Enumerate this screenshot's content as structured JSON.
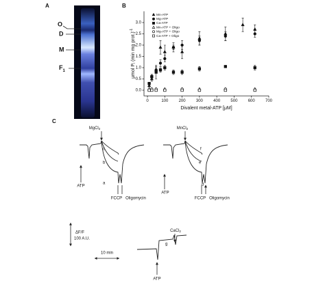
{
  "panel_a": {
    "label": "A",
    "bands": [
      "O",
      "D",
      "M",
      "F",
      "1"
    ]
  },
  "chart_data": {
    "type": "scatter",
    "label": "B",
    "x_label": "Divalent metal-ATP [μM]",
    "y_label": [
      "μmol P",
      "i",
      " (min mg prot.)",
      "-1"
    ],
    "xlim": [
      -20,
      700
    ],
    "xticks": [
      0,
      100,
      200,
      300,
      400,
      500,
      600,
      700
    ],
    "ylim": [
      -0.25,
      3.5
    ],
    "yticks": [
      {
        "value": 0,
        "label": "0.0"
      },
      0.5,
      {
        "value": 1,
        "label": "1.0"
      },
      1.5,
      {
        "value": 2,
        "label": "2.0"
      },
      2.5,
      {
        "value": 3,
        "label": "3.0"
      }
    ],
    "legend": "top-left",
    "series": [
      {
        "name": "Mn-ATP",
        "marker": "triangle",
        "filled": true,
        "color": "#111",
        "x": [
          10,
          25,
          50,
          75,
          100,
          150,
          200,
          300,
          450,
          550,
          620
        ],
        "values": [
          0.2,
          0.5,
          0.9,
          1.9,
          1.7,
          1.9,
          1.7,
          2.3,
          2.5,
          2.9,
          2.7
        ],
        "errors": [
          0.05,
          0.1,
          0.15,
          0.3,
          0.3,
          0.2,
          0.3,
          0.3,
          0.3,
          0.3,
          0.2
        ]
      },
      {
        "name": "Mg-ATP",
        "marker": "circle",
        "filled": true,
        "color": "#111",
        "x": [
          10,
          25,
          50,
          75,
          100,
          150,
          200,
          300,
          450,
          620
        ],
        "values": [
          0.3,
          0.6,
          0.9,
          1.2,
          1.4,
          1.9,
          2.0,
          2.2,
          2.4,
          2.5
        ],
        "errors": [
          0.05,
          0.1,
          0.1,
          0.15,
          0.15,
          0.1,
          0.2,
          0.2,
          0.2,
          0.15
        ]
      },
      {
        "name": "Ca-ATP",
        "marker": "square",
        "filled": true,
        "color": "#111",
        "x": [
          10,
          25,
          50,
          75,
          100,
          150,
          200,
          300,
          450,
          620
        ],
        "values": [
          0.3,
          0.6,
          0.8,
          0.9,
          1.0,
          0.8,
          0.8,
          0.95,
          1.05,
          1.0
        ],
        "errors": [
          0.05,
          0.1,
          0.3,
          0.1,
          0.1,
          0.1,
          0.1,
          0.1,
          0.05,
          0.1
        ]
      },
      {
        "name": "Mn-ATP + Oligo",
        "marker": "triangle",
        "filled": false,
        "color": "#111",
        "x": [
          10,
          25,
          50,
          100,
          200,
          300,
          450,
          620
        ],
        "values": [
          0.05,
          0.05,
          0.05,
          0.05,
          0.05,
          0.05,
          0.05,
          0.05
        ]
      },
      {
        "name": "Mg-ATP + Oligo",
        "marker": "circle",
        "filled": false,
        "color": "#111",
        "x": [
          10,
          25,
          50,
          100,
          200,
          300,
          450,
          620
        ],
        "values": [
          0.0,
          0.05,
          0.05,
          0.0,
          0.05,
          0.0,
          0.05,
          0.0
        ]
      },
      {
        "name": "Ca-ATP + Oligo",
        "marker": "square",
        "filled": false,
        "color": "#111",
        "x": [
          10,
          25,
          50,
          100,
          200,
          300,
          450,
          620
        ],
        "values": [
          0.0,
          0.0,
          0.0,
          0.0,
          0.0,
          0.0,
          0.0,
          0.0
        ]
      }
    ]
  },
  "panel_c": {
    "label": "C",
    "mg": [
      "MgCl",
      "2"
    ],
    "mn": [
      "MnCl",
      "2"
    ],
    "ca": [
      "CaCl",
      "2"
    ],
    "atp": "ATP",
    "fccp": "FCCP",
    "oligomycin": "Oligomycin",
    "traces": [
      "a",
      "b",
      "c",
      "d",
      "e",
      "f",
      "g"
    ],
    "scale_y": [
      "ΔF/F",
      "100 A.U."
    ],
    "scale_x": "10 min"
  }
}
